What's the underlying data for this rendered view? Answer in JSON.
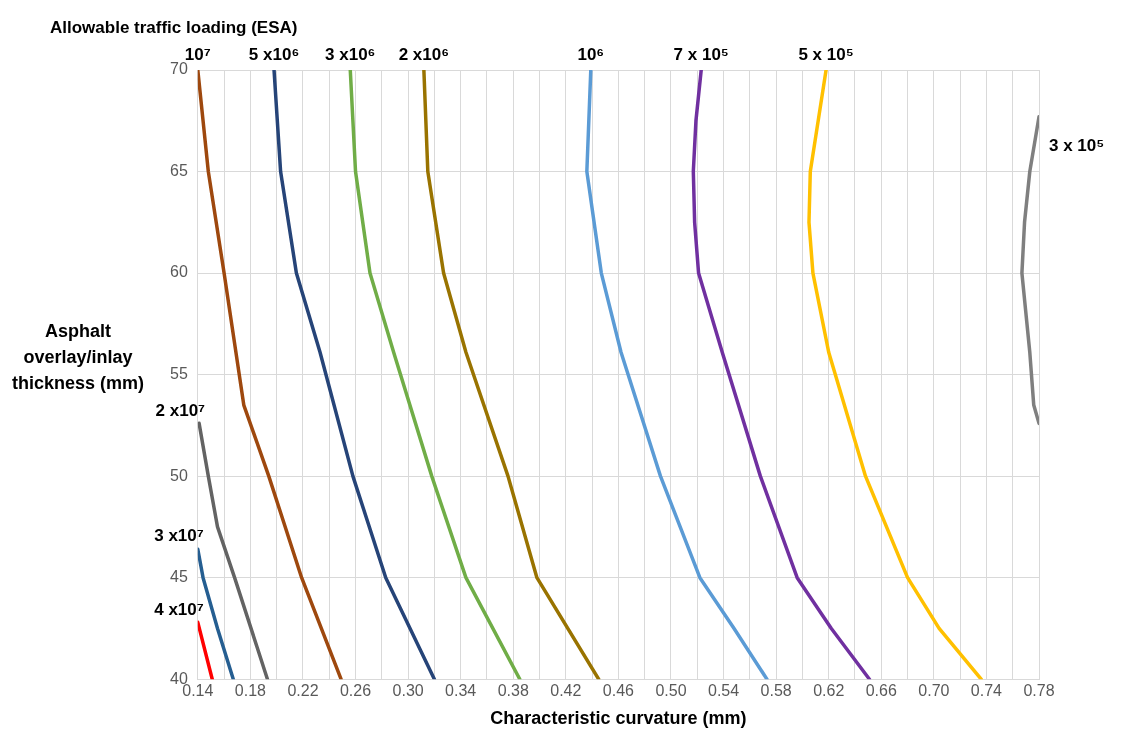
{
  "chart_data": {
    "type": "line",
    "title": "Allowable traffic loading (ESA)",
    "xlabel": "Characteristic curvature (mm)",
    "ylabel": "Asphalt overlay/inlay thickness (mm)",
    "xlim": [
      0.14,
      0.78
    ],
    "ylim": [
      40,
      70
    ],
    "xticks": [
      0.14,
      {
        "value": 0.16,
        "label": null
      },
      0.18,
      {
        "value": 0.2,
        "label": null
      },
      0.22,
      {
        "value": 0.24,
        "label": null
      },
      0.26,
      {
        "value": 0.28,
        "label": null
      },
      {
        "value": 0.3,
        "label": "0.30"
      },
      {
        "value": 0.32,
        "label": null
      },
      0.34,
      {
        "value": 0.36,
        "label": null
      },
      0.38,
      {
        "value": 0.4,
        "label": null
      },
      0.42,
      {
        "value": 0.44,
        "label": null
      },
      0.46,
      {
        "value": 0.48,
        "label": null
      },
      {
        "value": 0.5,
        "label": "0.50"
      },
      {
        "value": 0.52,
        "label": null
      },
      0.54,
      {
        "value": 0.56,
        "label": null
      },
      0.58,
      {
        "value": 0.6,
        "label": null
      },
      0.62,
      {
        "value": 0.64,
        "label": null
      },
      0.66,
      {
        "value": 0.68,
        "label": null
      },
      {
        "value": 0.7,
        "label": "0.70"
      },
      {
        "value": 0.72,
        "label": null
      },
      0.74,
      {
        "value": 0.76,
        "label": null
      },
      0.78
    ],
    "yticks": [
      40,
      45,
      50,
      55,
      60,
      65,
      70
    ],
    "grid": true,
    "legend": false,
    "marker": "none",
    "line_style": "solid",
    "series": [
      {
        "name": "10⁷",
        "color": "#9e480e",
        "x": [
          0.14,
          0.148,
          0.16,
          0.175,
          0.194,
          0.219,
          0.249
        ],
        "values": [
          70,
          65,
          60,
          53.5,
          50,
          45,
          40
        ]
      },
      {
        "name": "5 x10⁶",
        "color": "#264478",
        "x": [
          0.198,
          0.203,
          0.215,
          0.233,
          0.258,
          0.283,
          0.32
        ],
        "values": [
          70,
          65,
          60,
          56.1,
          50,
          45,
          40
        ]
      },
      {
        "name": "3 x10⁶",
        "color": "#70ad47",
        "x": [
          0.256,
          0.26,
          0.271,
          0.289,
          0.318,
          0.344,
          0.385
        ],
        "values": [
          70,
          65,
          60,
          56.1,
          50,
          45,
          40
        ]
      },
      {
        "name": "2 x10⁶",
        "color": "#997300",
        "x": [
          0.312,
          0.315,
          0.327,
          0.344,
          0.376,
          0.398,
          0.445
        ],
        "values": [
          70,
          65,
          60,
          56.1,
          50,
          45,
          40
        ]
      },
      {
        "name": "10⁶",
        "color": "#5b9bd5",
        "x": [
          0.439,
          0.436,
          0.447,
          0.462,
          0.492,
          0.522,
          0.548,
          0.573
        ],
        "values": [
          70,
          65,
          60,
          56.1,
          50,
          45,
          42.5,
          40
        ]
      },
      {
        "name": "7 x 10⁵",
        "color": "#7030a0",
        "x": [
          0.523,
          0.519,
          0.517,
          0.518,
          0.521,
          0.539,
          0.568,
          0.596,
          0.622,
          0.651
        ],
        "values": [
          70,
          67.5,
          65,
          62.5,
          60,
          56.1,
          50,
          45,
          42.5,
          40
        ]
      },
      {
        "name": "5 x 10⁵",
        "color": "#ffc000",
        "x": [
          0.618,
          0.612,
          0.606,
          0.605,
          0.608,
          0.62,
          0.648,
          0.68,
          0.704,
          0.736
        ],
        "values": [
          70,
          67.5,
          65,
          62.5,
          60,
          56.1,
          50,
          45,
          42.5,
          40
        ]
      },
      {
        "name": "3 x 10⁵",
        "color": "#7f7f7f",
        "x": [
          0.78,
          0.773,
          0.769,
          0.767,
          0.773,
          0.776,
          0.78
        ],
        "values": [
          67.7,
          65,
          62.5,
          60,
          56.1,
          53.5,
          52.6
        ]
      },
      {
        "name": "2 x10⁷",
        "color": "#636363",
        "x": [
          0.141,
          0.148,
          0.155,
          0.168,
          0.193
        ],
        "values": [
          52.6,
          50,
          47.5,
          45,
          40
        ]
      },
      {
        "name": "3 x10⁷",
        "color": "#255e91",
        "x": [
          0.14,
          0.144,
          0.155,
          0.167
        ],
        "values": [
          46.4,
          45,
          42.5,
          40
        ]
      },
      {
        "name": "4 x10⁷",
        "color": "#ff0000",
        "x": [
          0.14,
          0.151
        ],
        "values": [
          42.8,
          40
        ]
      }
    ]
  }
}
